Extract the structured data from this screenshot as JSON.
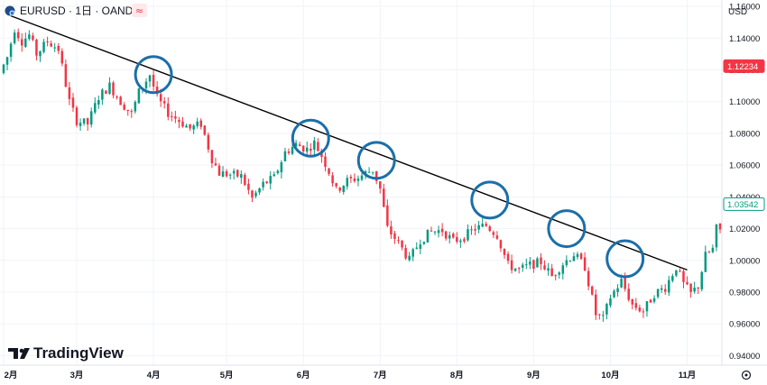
{
  "header": {
    "symbol": "EURUSD · 1日 · OANDA",
    "currency": "USD",
    "indicator_glyph": "≈"
  },
  "logo": {
    "text": "TradingView"
  },
  "colors": {
    "up": "#089981",
    "down": "#f23645",
    "trendline": "#000000",
    "circle": "#1b6fa8"
  },
  "chart_data": {
    "type": "candlestick",
    "symbol": "EURUSD",
    "interval": "1日",
    "source": "OANDA",
    "y_ticks": [
      0.94,
      0.96,
      0.98,
      1.0,
      1.02,
      1.04,
      1.06,
      1.08,
      1.1,
      1.12,
      1.14,
      1.16
    ],
    "y_tick_labels": [
      "0.94000",
      "0.96000",
      "0.98000",
      "1.00000",
      "1.02000",
      "1.04000",
      "1.06000",
      "1.08000",
      "1.10000",
      "1.12000",
      "1.14000",
      "1.16000"
    ],
    "ylim": [
      0.934,
      1.164
    ],
    "x_labels": [
      "2月",
      "3月",
      "4月",
      "5月",
      "6月",
      "7月",
      "8月",
      "9月",
      "10月",
      "11月"
    ],
    "x_label_index": [
      0,
      20,
      41,
      61,
      82,
      103,
      124,
      145,
      166,
      187
    ],
    "x_count": 197,
    "price_tags": [
      {
        "label": "1.12234",
        "value": 1.12234,
        "style": "filled-red"
      },
      {
        "label": "1.03542",
        "value": 1.03542,
        "style": "outline-green"
      }
    ],
    "trendline": {
      "start": {
        "index": 2,
        "value": 1.154
      },
      "end": {
        "index": 187,
        "value": 0.994
      }
    },
    "touch_points": [
      {
        "index": 41,
        "value": 1.117
      },
      {
        "index": 84,
        "value": 1.077
      },
      {
        "index": 102,
        "value": 1.063
      },
      {
        "index": 133,
        "value": 1.038
      },
      {
        "index": 154,
        "value": 1.02
      },
      {
        "index": 170,
        "value": 1.001
      }
    ],
    "anchors": [
      [
        0,
        1.118
      ],
      [
        2,
        1.128
      ],
      [
        4,
        1.146
      ],
      [
        6,
        1.138
      ],
      [
        8,
        1.142
      ],
      [
        10,
        1.13
      ],
      [
        13,
        1.138
      ],
      [
        16,
        1.133
      ],
      [
        19,
        1.1
      ],
      [
        21,
        1.088
      ],
      [
        24,
        1.086
      ],
      [
        27,
        1.103
      ],
      [
        30,
        1.11
      ],
      [
        33,
        1.1
      ],
      [
        36,
        1.092
      ],
      [
        38,
        1.106
      ],
      [
        41,
        1.117
      ],
      [
        43,
        1.102
      ],
      [
        46,
        1.093
      ],
      [
        49,
        1.088
      ],
      [
        52,
        1.083
      ],
      [
        55,
        1.086
      ],
      [
        58,
        1.064
      ],
      [
        60,
        1.055
      ],
      [
        63,
        1.054
      ],
      [
        66,
        1.053
      ],
      [
        69,
        1.039
      ],
      [
        72,
        1.048
      ],
      [
        75,
        1.052
      ],
      [
        78,
        1.068
      ],
      [
        81,
        1.073
      ],
      [
        84,
        1.07
      ],
      [
        86,
        1.074
      ],
      [
        88,
        1.066
      ],
      [
        90,
        1.056
      ],
      [
        92,
        1.044
      ],
      [
        95,
        1.05
      ],
      [
        98,
        1.052
      ],
      [
        100,
        1.055
      ],
      [
        102,
        1.057
      ],
      [
        104,
        1.045
      ],
      [
        106,
        1.02
      ],
      [
        109,
        1.011
      ],
      [
        112,
        1.0
      ],
      [
        115,
        1.013
      ],
      [
        118,
        1.018
      ],
      [
        121,
        1.019
      ],
      [
        124,
        1.012
      ],
      [
        127,
        1.015
      ],
      [
        130,
        1.02
      ],
      [
        133,
        1.022
      ],
      [
        136,
        1.016
      ],
      [
        139,
        0.997
      ],
      [
        142,
        0.994
      ],
      [
        145,
        0.997
      ],
      [
        148,
        0.999
      ],
      [
        151,
        0.99
      ],
      [
        154,
        0.998
      ],
      [
        157,
        1.004
      ],
      [
        160,
        0.996
      ],
      [
        163,
        0.966
      ],
      [
        165,
        0.963
      ],
      [
        167,
        0.977
      ],
      [
        170,
        0.987
      ],
      [
        173,
        0.972
      ],
      [
        176,
        0.968
      ],
      [
        179,
        0.979
      ],
      [
        182,
        0.983
      ],
      [
        185,
        0.996
      ],
      [
        187,
        0.985
      ],
      [
        189,
        0.979
      ],
      [
        191,
        0.984
      ],
      [
        193,
        1.003
      ],
      [
        195,
        1.007
      ],
      [
        196,
        1.02
      ]
    ]
  }
}
